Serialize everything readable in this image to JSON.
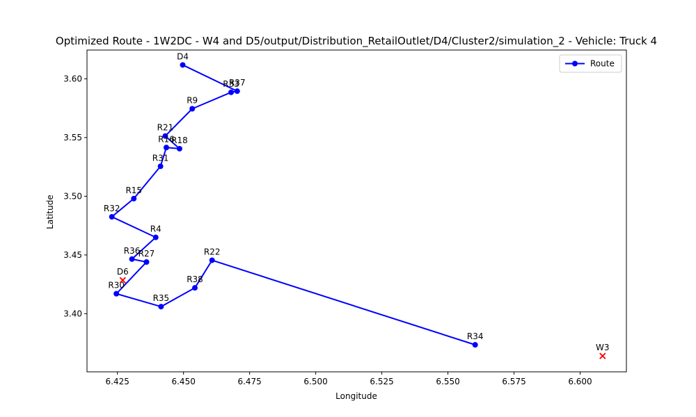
{
  "chart_data": {
    "type": "line",
    "title": "Optimized Route - 1W2DC - W4 and D5/output/Distribution_RetailOutlet/D4/Cluster2/simulation_2 - Vehicle: Truck 4",
    "xlabel": "Longitude",
    "ylabel": "Latitude",
    "xlim": [
      6.4135,
      6.6175
    ],
    "ylim": [
      3.3505,
      3.6245
    ],
    "x_ticks": [
      "6.425",
      "6.450",
      "6.475",
      "6.500",
      "6.525",
      "6.550",
      "6.575",
      "6.600"
    ],
    "x_tick_values": [
      6.425,
      6.45,
      6.475,
      6.5,
      6.525,
      6.55,
      6.575,
      6.6
    ],
    "y_ticks": [
      "3.40",
      "3.45",
      "3.50",
      "3.55",
      "3.60"
    ],
    "y_tick_values": [
      3.4,
      3.45,
      3.5,
      3.55,
      3.6
    ],
    "grid": false,
    "legend": {
      "position": "top-right",
      "entries": [
        "Route"
      ]
    },
    "series": [
      {
        "name": "Route",
        "color": "#0000ff",
        "marker": "circle",
        "points": [
          {
            "label": "D4",
            "x": 6.4497,
            "y": 3.6118
          },
          {
            "label": "R37",
            "x": 6.4703,
            "y": 3.5895
          },
          {
            "label": "R33",
            "x": 6.468,
            "y": 3.5885
          },
          {
            "label": "R9",
            "x": 6.4533,
            "y": 3.5745
          },
          {
            "label": "R21",
            "x": 6.4431,
            "y": 3.5513
          },
          {
            "label": "R18",
            "x": 6.4485,
            "y": 3.5405
          },
          {
            "label": "R16",
            "x": 6.4435,
            "y": 3.5415
          },
          {
            "label": "R31",
            "x": 6.4413,
            "y": 3.5255
          },
          {
            "label": "R15",
            "x": 6.4312,
            "y": 3.498
          },
          {
            "label": "R32",
            "x": 6.4229,
            "y": 3.4825
          },
          {
            "label": "R4",
            "x": 6.4395,
            "y": 3.465
          },
          {
            "label": "R36",
            "x": 6.4305,
            "y": 3.4465
          },
          {
            "label": "R27",
            "x": 6.436,
            "y": 3.444
          },
          {
            "label": "R30",
            "x": 6.4246,
            "y": 3.417
          },
          {
            "label": "R35",
            "x": 6.4415,
            "y": 3.406
          },
          {
            "label": "R38",
            "x": 6.4543,
            "y": 3.422
          },
          {
            "label": "R22",
            "x": 6.4608,
            "y": 3.4455
          },
          {
            "label": "R34",
            "x": 6.5603,
            "y": 3.3735
          }
        ]
      }
    ],
    "depots": [
      {
        "label": "D6",
        "x": 6.427,
        "y": 3.4285,
        "marker": "x",
        "color": "#ff0000"
      },
      {
        "label": "W3",
        "x": 6.6085,
        "y": 3.364,
        "marker": "x",
        "color": "#ff0000"
      }
    ]
  },
  "colors": {
    "route": "#0000ff",
    "depot": "#ff0000",
    "axes": "#000000",
    "legend_border": "#cccccc"
  }
}
